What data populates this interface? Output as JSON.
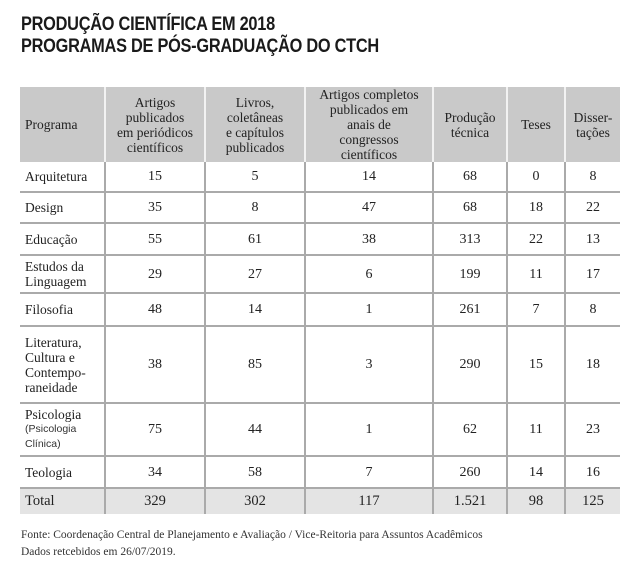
{
  "title": {
    "line1": "PRODUÇÃO CIENTÍFICA EM 2018",
    "line2": "PROGRAMAS DE PÓS-GRADUAÇÃO DO CTCH"
  },
  "table": {
    "headers": [
      [
        "Programa"
      ],
      [
        "Artigos",
        "publicados",
        "em periódicos",
        "científicos"
      ],
      [
        "Livros,",
        "coletâneas",
        "e capítulos",
        "publicados"
      ],
      [
        "Artigos completos",
        "publicados em",
        "anais de",
        "congressos",
        "científicos"
      ],
      [
        "Produção",
        "técnica"
      ],
      [
        "Teses"
      ],
      [
        "Disser-",
        "tações"
      ]
    ],
    "rows": [
      {
        "program": [
          "Arquitetura"
        ],
        "values": [
          "15",
          "5",
          "14",
          "68",
          "0",
          "8"
        ]
      },
      {
        "program": [
          "Design"
        ],
        "values": [
          "35",
          "8",
          "47",
          "68",
          "18",
          "22"
        ]
      },
      {
        "program": [
          "Educação"
        ],
        "values": [
          "55",
          "61",
          "38",
          "313",
          "22",
          "13"
        ]
      },
      {
        "program": [
          "Estudos da",
          "Linguagem"
        ],
        "values": [
          "29",
          "27",
          "6",
          "199",
          "11",
          "17"
        ]
      },
      {
        "program": [
          "Filosofia"
        ],
        "values": [
          "48",
          "14",
          "1",
          "261",
          "7",
          "8"
        ]
      },
      {
        "program": [
          "Literatura,",
          "Cultura e",
          "Contempo-",
          "raneidade"
        ],
        "values": [
          "38",
          "85",
          "3",
          "290",
          "15",
          "18"
        ]
      },
      {
        "program": [
          "Psicologia"
        ],
        "program_sub": [
          "(Psicologia",
          "Clínica)"
        ],
        "values": [
          "75",
          "44",
          "1",
          "62",
          "11",
          "23"
        ]
      },
      {
        "program": [
          "Teologia"
        ],
        "values": [
          "34",
          "58",
          "7",
          "260",
          "14",
          "16"
        ]
      }
    ],
    "total": {
      "label": "Total",
      "values": [
        "329",
        "302",
        "117",
        "1.521",
        "98",
        "125"
      ]
    }
  },
  "footer": {
    "source": "Fonte: Coordenação Central de Planejamento e Avaliação / Vice-Reitoria para Assuntos Acadêmicos",
    "date": "Dados retcebidos em 26/07/2019."
  },
  "colors": {
    "header_bg": "#c9c9c9",
    "total_bg": "#e4e4e4",
    "grid": "#aaaaaa"
  }
}
